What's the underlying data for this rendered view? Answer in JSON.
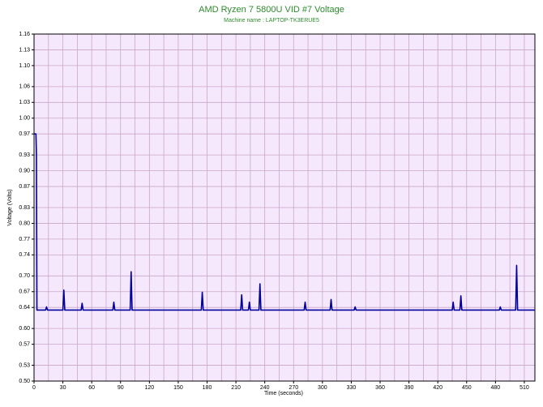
{
  "chart_data": {
    "type": "line",
    "title": "AMD Ryzen 7 5800U VID #7 Voltage",
    "subtitle": "Machine name : LAPTOP-TK3ERUE5",
    "x_label": "Time (seconds)",
    "y_label": "Voltage (Volts)",
    "xlim": [
      0,
      521
    ],
    "ylim": [
      0.5,
      1.16
    ],
    "xticks": [
      0,
      30,
      60,
      90,
      120,
      150,
      180,
      210,
      240,
      270,
      300,
      330,
      360,
      390,
      420,
      450,
      480,
      510
    ],
    "yticks": [
      {
        "value": 0.5,
        "label": "0.50"
      },
      0.53,
      0.57,
      {
        "value": 0.6,
        "label": "0.60"
      },
      0.64,
      0.67,
      {
        "value": 0.7,
        "label": "0.70"
      },
      0.74,
      0.77,
      {
        "value": 0.8,
        "label": "0.80"
      },
      0.83,
      0.87,
      {
        "value": 0.9,
        "label": "0.90"
      },
      0.93,
      0.97,
      {
        "value": 1.0,
        "label": "1.00"
      },
      1.03,
      1.06,
      {
        "value": 1.1,
        "label": "1.10"
      },
      1.13,
      1.16
    ],
    "grid": true,
    "background": "#f6e8fc",
    "series": [
      {
        "color": "#00009c",
        "x": [
          0,
          2,
          2.5,
          3,
          12,
          13,
          14,
          30,
          31,
          32,
          49,
          50,
          51,
          82,
          83,
          84,
          100,
          101,
          102,
          174,
          175,
          176,
          215,
          216,
          217,
          223,
          224,
          225,
          234,
          235,
          236,
          281,
          282,
          283,
          308,
          309,
          310,
          333,
          334,
          335,
          435,
          436,
          437,
          443,
          444,
          445,
          484,
          485,
          486,
          501,
          502,
          503,
          521
        ],
        "values": [
          0.97,
          0.97,
          0.93,
          0.635,
          0.635,
          0.641,
          0.635,
          0.635,
          0.673,
          0.635,
          0.635,
          0.648,
          0.635,
          0.635,
          0.65,
          0.635,
          0.635,
          0.708,
          0.635,
          0.635,
          0.669,
          0.635,
          0.635,
          0.664,
          0.635,
          0.635,
          0.65,
          0.635,
          0.635,
          0.685,
          0.635,
          0.635,
          0.65,
          0.635,
          0.635,
          0.655,
          0.635,
          0.635,
          0.641,
          0.635,
          0.635,
          0.65,
          0.635,
          0.635,
          0.662,
          0.635,
          0.635,
          0.641,
          0.635,
          0.635,
          0.72,
          0.635,
          0.635
        ]
      }
    ]
  }
}
